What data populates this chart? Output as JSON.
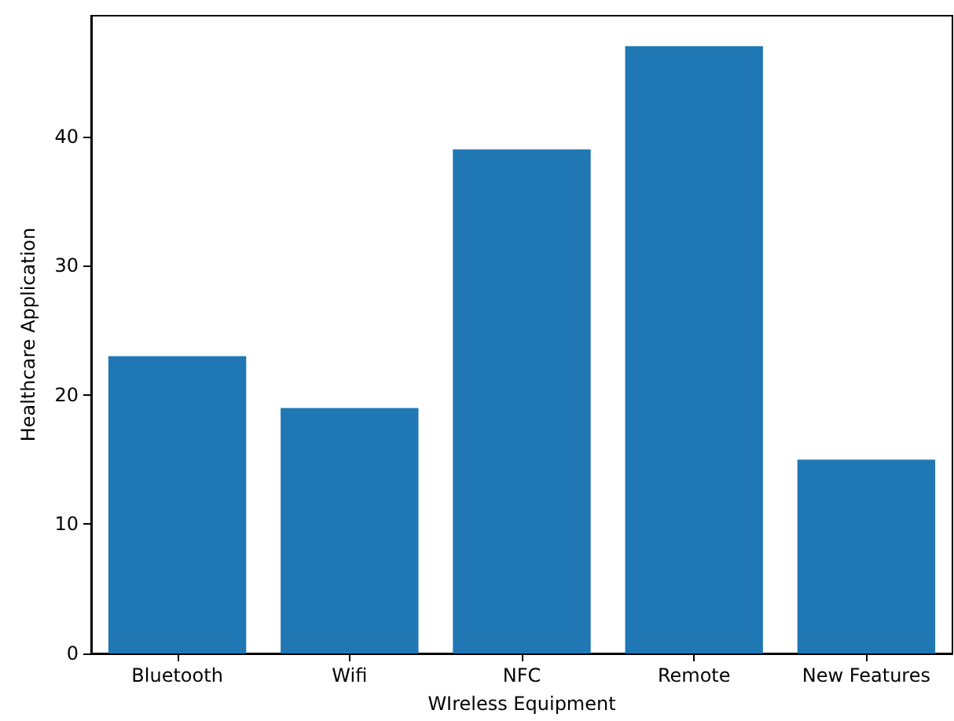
{
  "chart_data": {
    "type": "bar",
    "xlabel": "WIreless Equipment",
    "ylabel": "Healthcare Application",
    "categories": [
      "Bluetooth",
      "Wifi",
      "NFC",
      "Remote",
      "New Features"
    ],
    "values": [
      23,
      19,
      39,
      47,
      15
    ],
    "color": "#1f77b4",
    "ylim": [
      0,
      49.35
    ],
    "yticks": [
      0,
      10,
      20,
      30,
      40
    ],
    "grid": false
  }
}
